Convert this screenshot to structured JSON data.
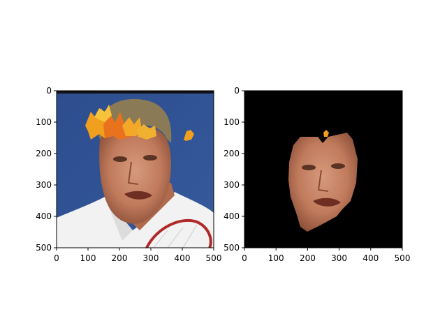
{
  "chart_data": [
    {
      "type": "image",
      "title": "",
      "xlabel": "",
      "ylabel": "",
      "xlim": [
        0,
        500
      ],
      "ylim": [
        500,
        0
      ],
      "xticks": [
        0,
        100,
        200,
        300,
        400,
        500
      ],
      "yticks": [
        0,
        100,
        200,
        300,
        400,
        500
      ],
      "background": "#2f4f8f",
      "content": "photo-of-man-with-autumn-leaves"
    },
    {
      "type": "image",
      "title": "",
      "xlabel": "",
      "ylabel": "",
      "xlim": [
        0,
        500
      ],
      "ylim": [
        500,
        0
      ],
      "xticks": [
        0,
        100,
        200,
        300,
        400,
        500
      ],
      "yticks": [
        0,
        100,
        200,
        300,
        400,
        500
      ],
      "background": "#000000",
      "content": "face-segmentation-mask"
    }
  ]
}
